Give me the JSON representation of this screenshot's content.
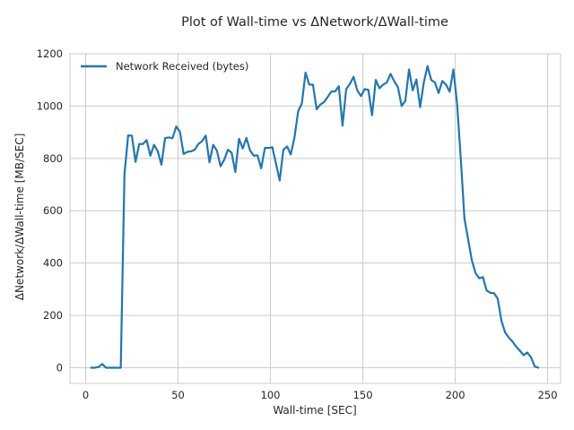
{
  "chart_data": {
    "type": "line",
    "title": "Plot of Wall-time vs ΔNetwork/ΔWall-time",
    "xlabel": "Wall-time [SEC]",
    "ylabel": "ΔNetwork/ΔWall-time [MB/SEC]",
    "xlim": [
      -8.5,
      257
    ],
    "ylim": [
      -60,
      1200
    ],
    "xticks": [
      0,
      50,
      100,
      150,
      200,
      250
    ],
    "yticks": [
      0,
      200,
      400,
      600,
      800,
      1000,
      1200
    ],
    "grid": true,
    "legend": {
      "position": "top-left"
    },
    "series": [
      {
        "name": "Network Received (bytes)",
        "color": "#1f77b4",
        "x": [
          3,
          5,
          7,
          9,
          11,
          13,
          15,
          17,
          19,
          21,
          23,
          25,
          27,
          29,
          31,
          33,
          35,
          37,
          39,
          41,
          43,
          45,
          47,
          49,
          51,
          53,
          55,
          57,
          59,
          61,
          63,
          65,
          67,
          69,
          71,
          73,
          75,
          77,
          79,
          81,
          83,
          85,
          87,
          89,
          91,
          93,
          95,
          97,
          99,
          101,
          103,
          105,
          107,
          109,
          111,
          113,
          115,
          117,
          119,
          121,
          123,
          125,
          127,
          129,
          131,
          133,
          135,
          137,
          139,
          141,
          143,
          145,
          147,
          149,
          151,
          153,
          155,
          157,
          159,
          161,
          163,
          165,
          167,
          169,
          171,
          173,
          175,
          177,
          179,
          181,
          183,
          185,
          187,
          189,
          191,
          193,
          195,
          197,
          199,
          201,
          203,
          205,
          207,
          209,
          211,
          213,
          215,
          217,
          219,
          221,
          223,
          225,
          227,
          229,
          231,
          233,
          235,
          237,
          239,
          241,
          243,
          245
        ],
        "y": [
          0,
          0,
          3,
          14,
          0,
          0,
          0,
          0,
          0,
          740,
          888,
          887,
          787,
          855,
          855,
          870,
          810,
          852,
          828,
          776,
          878,
          880,
          877,
          922,
          902,
          817,
          825,
          827,
          833,
          855,
          866,
          887,
          785,
          852,
          830,
          770,
          795,
          833,
          822,
          748,
          875,
          838,
          878,
          830,
          810,
          812,
          762,
          840,
          840,
          843,
          780,
          716,
          833,
          846,
          815,
          880,
          980,
          1010,
          1128,
          1082,
          1082,
          988,
          1006,
          1015,
          1035,
          1056,
          1056,
          1076,
          925,
          1065,
          1085,
          1112,
          1060,
          1038,
          1065,
          1062,
          965,
          1100,
          1068,
          1082,
          1090,
          1123,
          1095,
          1072,
          1000,
          1020,
          1140,
          1060,
          1102,
          996,
          1090,
          1153,
          1100,
          1090,
          1050,
          1096,
          1082,
          1055,
          1140,
          1010,
          800,
          570,
          490,
          410,
          362,
          342,
          346,
          295,
          286,
          285,
          264,
          180,
          135,
          115,
          100,
          80,
          65,
          48,
          58,
          40,
          5,
          0
        ]
      }
    ]
  }
}
